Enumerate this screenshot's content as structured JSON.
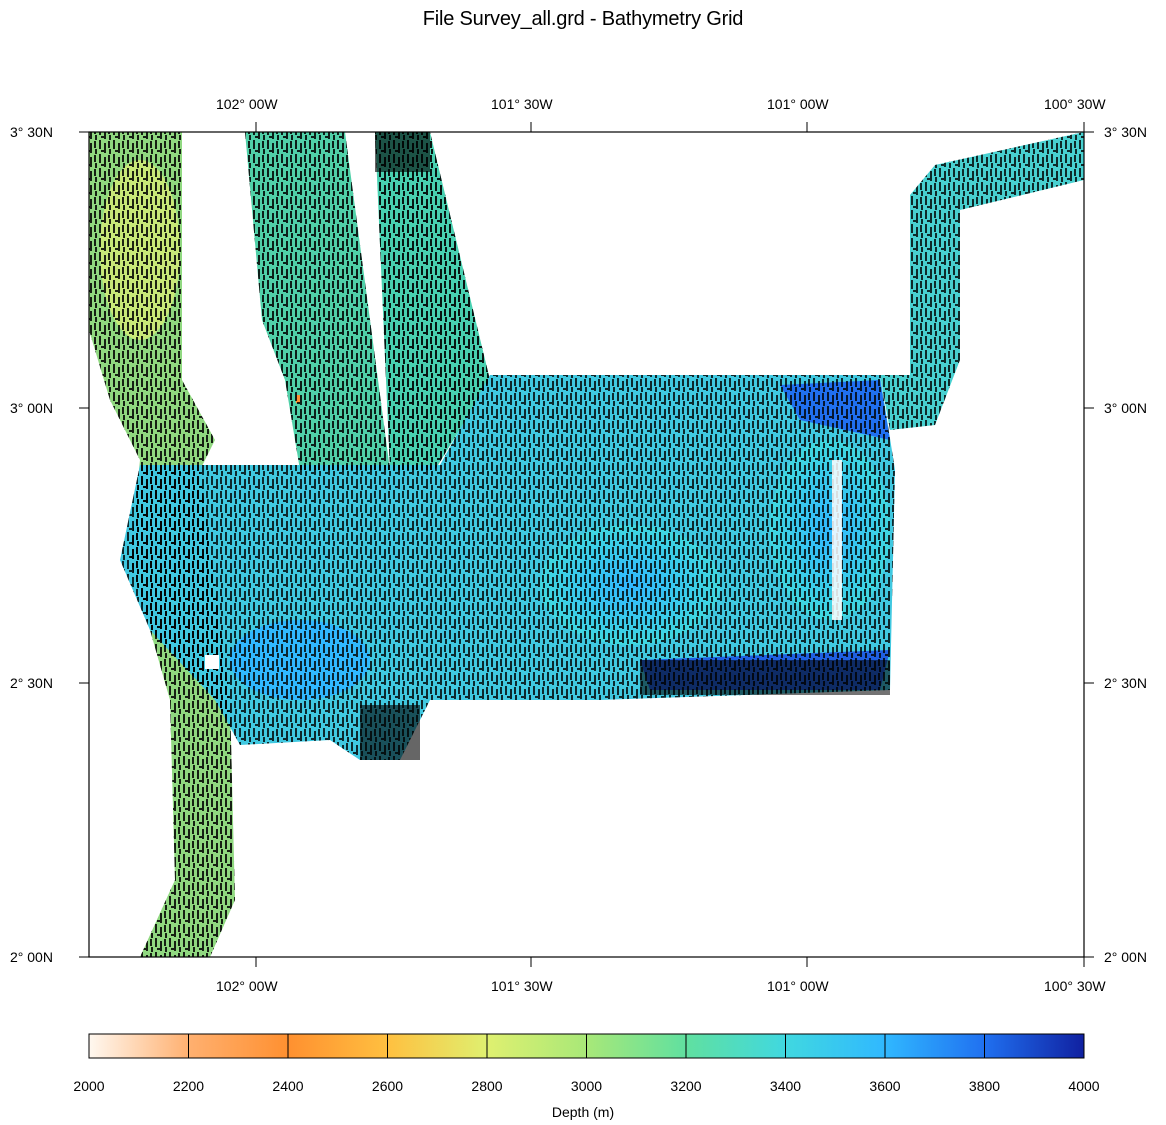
{
  "title": "File Survey_all.grd - Bathymetry Grid",
  "map": {
    "lon_range": [
      -102.3,
      -100.5
    ],
    "lat_range": [
      2.0,
      3.5
    ],
    "top_ticks": [
      "102° 00W",
      "101° 30W",
      "101° 00W",
      "100° 30W"
    ],
    "bottom_ticks": [
      "102° 00W",
      "101° 30W",
      "101° 00W",
      "100° 30W"
    ],
    "left_ticks": [
      "3° 30N",
      "3° 00N",
      "2° 30N",
      "2° 00N"
    ],
    "right_ticks": [
      "3° 30N",
      "3° 00N",
      "2° 30N",
      "2° 00N"
    ],
    "tick_lons": [
      -102.0,
      -101.5,
      -101.0,
      -100.5
    ],
    "tick_lats": [
      3.5,
      3.0,
      2.5,
      2.0
    ]
  },
  "colorbar": {
    "label": "Depth (m)",
    "ticks": [
      "2000",
      "2200",
      "2400",
      "2600",
      "2800",
      "3000",
      "3200",
      "3400",
      "3600",
      "3800",
      "4000"
    ],
    "colors": [
      "#fff8f0",
      "#ffb070",
      "#ff9030",
      "#ffc040",
      "#dff070",
      "#a8e878",
      "#60e0a0",
      "#40d8e0",
      "#30b8ff",
      "#2070f0",
      "#1020a0"
    ]
  },
  "chart_data": {
    "type": "heatmap",
    "title": "File Survey_all.grd - Bathymetry Grid",
    "xlim": [
      -102.3,
      -100.5
    ],
    "ylim": [
      2.0,
      3.5
    ],
    "value_label": "Depth (m)",
    "value_range": [
      2000,
      4000
    ]
  }
}
